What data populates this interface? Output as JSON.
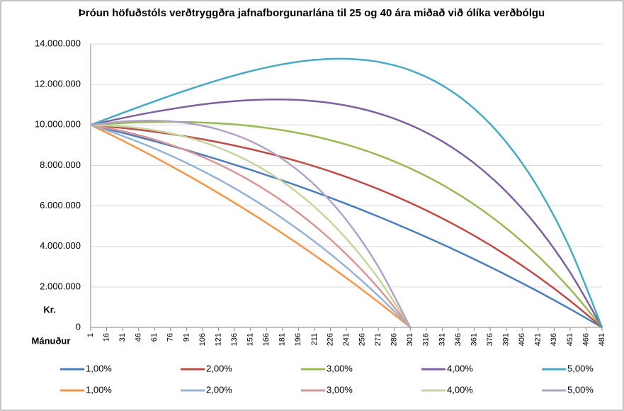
{
  "chart_data": {
    "type": "line",
    "title": "Þróun höfuðstóls verðtryggðra jafnafborgunarlána til 25 og 40 ára miðað við ólíka verðbólgu",
    "y_label": "Kr.",
    "x_label": "Mánuður",
    "x": [
      1,
      31,
      61,
      91,
      121,
      151,
      181,
      211,
      241,
      271,
      301,
      331,
      361,
      391,
      421,
      451,
      481
    ],
    "xlim": [
      1,
      481
    ],
    "xticks": [
      1,
      16,
      31,
      46,
      61,
      76,
      91,
      106,
      121,
      136,
      151,
      166,
      181,
      196,
      211,
      226,
      241,
      256,
      271,
      286,
      301,
      316,
      331,
      346,
      361,
      376,
      391,
      406,
      421,
      436,
      451,
      466,
      481
    ],
    "ylim": [
      0,
      14000000
    ],
    "yticks": [
      {
        "value": 0,
        "label": "0"
      },
      {
        "value": 2000000,
        "label": "2.000.000"
      },
      {
        "value": 4000000,
        "label": "4.000.000"
      },
      {
        "value": 6000000,
        "label": "6.000.000"
      },
      {
        "value": 8000000,
        "label": "8.000.000"
      },
      {
        "value": 10000000,
        "label": "10.000.000"
      },
      {
        "value": 12000000,
        "label": "12.000.000"
      },
      {
        "value": 14000000,
        "label": "14.000.000"
      }
    ],
    "grid": true,
    "legend": "bottom",
    "series": [
      {
        "name": "1,00%",
        "color": "#4a7ebb",
        "values": [
          10000000,
          9611000,
          9196000,
          8755000,
          8285000,
          7786000,
          7256000,
          6695000,
          6101000,
          5473000,
          4809000,
          4109000,
          3370000,
          2591000,
          1771000,
          908000,
          0
        ]
      },
      {
        "name": "2,00%",
        "color": "#be4b48",
        "values": [
          10000000,
          9851000,
          9661000,
          9427000,
          9143000,
          8806000,
          8412000,
          7955000,
          7430000,
          6831000,
          6152000,
          5387000,
          4529000,
          3569000,
          2500000,
          1313000,
          0
        ]
      },
      {
        "name": "3,00%",
        "color": "#98b954",
        "values": [
          10000000,
          10094000,
          10144000,
          10142000,
          10079000,
          9948000,
          9738000,
          9436000,
          9031000,
          8508000,
          7852000,
          7045000,
          6068000,
          4900000,
          3517000,
          1894000,
          0
        ]
      },
      {
        "name": "4,00%",
        "color": "#7d60a0",
        "values": [
          10000000,
          10341000,
          10646000,
          10904000,
          11102000,
          11225000,
          11256000,
          11174000,
          10956000,
          10574000,
          9997000,
          9189000,
          8109000,
          6708000,
          4933000,
          2720000,
          0
        ]
      },
      {
        "name": "5,00%",
        "color": "#46aac5",
        "values": [
          10000000,
          10591000,
          11168000,
          11715000,
          12217000,
          12652000,
          12993000,
          13211000,
          13267000,
          13114000,
          12699000,
          11955000,
          10805000,
          9155000,
          6895000,
          3895000,
          0
        ]
      },
      {
        "name": "1,00%",
        "color": "#f79646",
        "values": [
          10000000,
          9227000,
          8408000,
          7543000,
          6628000,
          5663000,
          4644000,
          3571000,
          2440000,
          1251000,
          0,
          null,
          null,
          null,
          null,
          null,
          null
        ]
      },
      {
        "name": "2,00%",
        "color": "#95b3d7",
        "values": [
          10000000,
          9457000,
          8833000,
          8121000,
          7314000,
          6405000,
          5384000,
          4243000,
          2972000,
          1561000,
          0,
          null,
          null,
          null,
          null,
          null,
          null
        ]
      },
      {
        "name": "3,00%",
        "color": "#d99694",
        "values": [
          10000000,
          9690000,
          9274000,
          8737000,
          8063000,
          7235000,
          6232000,
          5033000,
          3612000,
          1945000,
          0,
          null,
          null,
          null,
          null,
          null,
          null
        ]
      },
      {
        "name": "4,00%",
        "color": "#c3d69b",
        "values": [
          10000000,
          9927000,
          9734000,
          9394000,
          8881000,
          8164000,
          7204000,
          5960000,
          4382000,
          2417000,
          0,
          null,
          null,
          null,
          null,
          null,
          null
        ]
      },
      {
        "name": "5,00%",
        "color": "#b3a2c7",
        "values": [
          10000000,
          10167000,
          10210000,
          10093000,
          9773000,
          9202000,
          8316000,
          7046000,
          5307000,
          2998000,
          0,
          null,
          null,
          null,
          null,
          null,
          null
        ]
      }
    ]
  }
}
